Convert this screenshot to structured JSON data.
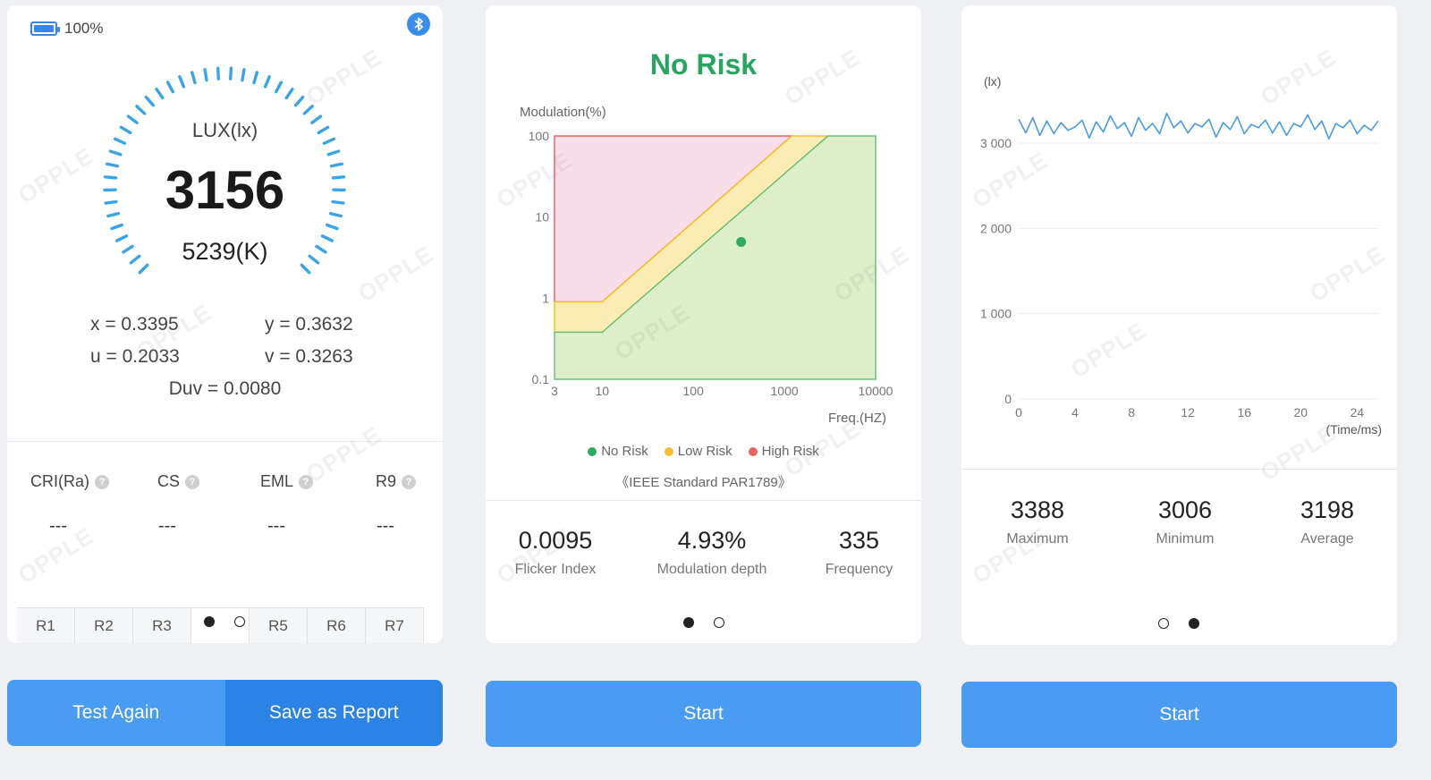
{
  "panel1": {
    "battery": "100%",
    "lux_label": "LUX(lx)",
    "lux_value": "3156",
    "cct_value": "5239(K)",
    "coords": {
      "x": "x = 0.3395",
      "y": "y = 0.3632",
      "u": "u = 0.2033",
      "v": "v = 0.3263",
      "duv": "Duv = 0.0080"
    },
    "cri": [
      {
        "label": "CRI(Ra)",
        "value": "---"
      },
      {
        "label": "CS",
        "value": "---"
      },
      {
        "label": "EML",
        "value": "---"
      },
      {
        "label": "R9",
        "value": "---"
      }
    ],
    "r_cells": [
      "R1",
      "R2",
      "R3",
      "",
      "R5",
      "R6",
      "R7"
    ],
    "buttons": {
      "test_again": "Test Again",
      "save_report": "Save as Report"
    }
  },
  "panel2": {
    "status": "No Risk",
    "chart": {
      "ylabel": "Modulation(%)",
      "xlabel": "Freq.(HZ)",
      "yticks": [
        "100",
        "10",
        "1",
        "0.1"
      ],
      "xticks": [
        "3",
        "10",
        "100",
        "1000",
        "10000"
      ]
    },
    "legend": [
      {
        "label": "No Risk",
        "color": "#2eaa63"
      },
      {
        "label": "Low Risk",
        "color": "#f3c12c"
      },
      {
        "label": "High Risk",
        "color": "#e8655f"
      }
    ],
    "standard": "《IEEE Standard PAR1789》",
    "stats": [
      {
        "value": "0.0095",
        "label": "Flicker Index"
      },
      {
        "value": "4.93%",
        "label": "Modulation depth"
      },
      {
        "value": "335",
        "label": "Frequency"
      }
    ],
    "button": "Start"
  },
  "panel3": {
    "chart": {
      "ylabel": "(lx)",
      "xlabel": "(Time/ms)",
      "yticks": [
        "3 000",
        "2 000",
        "1 000",
        "0"
      ],
      "xticks": [
        "0",
        "4",
        "8",
        "12",
        "16",
        "20",
        "24"
      ]
    },
    "stats": [
      {
        "value": "3388",
        "label": "Maximum"
      },
      {
        "value": "3006",
        "label": "Minimum"
      },
      {
        "value": "3198",
        "label": "Average"
      }
    ],
    "button": "Start"
  },
  "watermark": "OPPLE",
  "chart_data": [
    {
      "type": "scatter",
      "xlabel": "Freq.(HZ)",
      "ylabel": "Modulation(%)",
      "x_scale": "log",
      "y_scale": "log",
      "xlim": [
        3,
        10000
      ],
      "ylim": [
        0.1,
        100
      ],
      "series": [
        {
          "name": "",
          "x": [
            335
          ],
          "y": [
            4.93
          ]
        }
      ],
      "regions": [
        {
          "name": "No Risk",
          "color": "#2eaa63"
        },
        {
          "name": "Low Risk",
          "color": "#f3c12c"
        },
        {
          "name": "High Risk",
          "color": "#e8655f"
        }
      ]
    },
    {
      "type": "line",
      "xlabel": "(Time/ms)",
      "ylabel": "(lx)",
      "xlim": [
        0,
        25.5
      ],
      "ylim": [
        0,
        3200
      ],
      "series": [
        {
          "name": "",
          "x": [
            0,
            0.5,
            1,
            1.5,
            2,
            2.5,
            3,
            3.5,
            4,
            4.5,
            5,
            5.5,
            6,
            6.5,
            7,
            7.5,
            8,
            8.5,
            9,
            9.5,
            10,
            10.5,
            11,
            11.5,
            12,
            12.5,
            13,
            13.5,
            14,
            14.5,
            15,
            15.5,
            16,
            16.5,
            17,
            17.5,
            18,
            18.5,
            19,
            19.5,
            20,
            20.5,
            21,
            21.5,
            22,
            22.5,
            23,
            23.5,
            24,
            24.5,
            25,
            25.5
          ],
          "y": [
            3280,
            3120,
            3300,
            3090,
            3260,
            3110,
            3240,
            3150,
            3190,
            3270,
            3060,
            3250,
            3130,
            3320,
            3170,
            3240,
            3080,
            3300,
            3150,
            3230,
            3110,
            3350,
            3180,
            3260,
            3120,
            3230,
            3190,
            3280,
            3070,
            3240,
            3160,
            3310,
            3110,
            3220,
            3180,
            3270,
            3120,
            3250,
            3090,
            3230,
            3190,
            3330,
            3160,
            3260,
            3050,
            3230,
            3180,
            3270,
            3110,
            3210,
            3150,
            3260
          ]
        }
      ]
    }
  ]
}
